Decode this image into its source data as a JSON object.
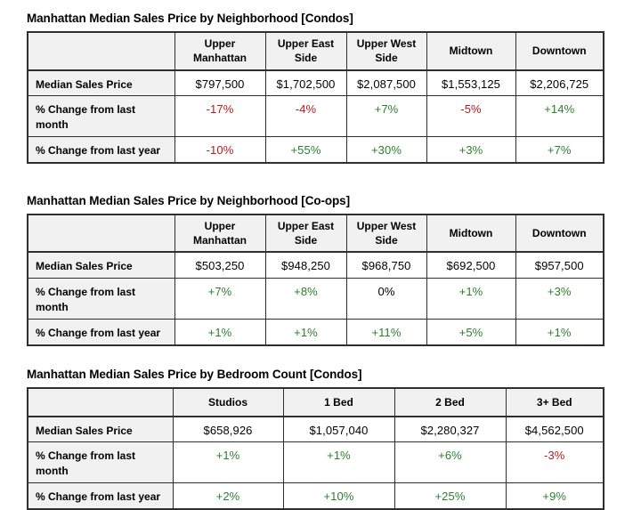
{
  "colors": {
    "positive": "#2d7d2d",
    "negative": "#b01c1c",
    "neutral": "#000000",
    "header_bg": "#f1f1f1",
    "border": "#2f2f2f"
  },
  "tables": [
    {
      "title": "Manhattan Median Sales Price by Neighborhood [Condos]",
      "columns": [
        "Upper Manhattan",
        "Upper East Side",
        "Upper West Side",
        "Midtown",
        "Downtown"
      ],
      "rows": [
        {
          "label": "Median Sales Price",
          "values": [
            {
              "text": "$797,500",
              "tone": "neutral"
            },
            {
              "text": "$1,702,500",
              "tone": "neutral"
            },
            {
              "text": "$2,087,500",
              "tone": "neutral"
            },
            {
              "text": "$1,553,125",
              "tone": "neutral"
            },
            {
              "text": "$2,206,725",
              "tone": "neutral"
            }
          ]
        },
        {
          "label": "% Change from last month",
          "values": [
            {
              "text": "-17%",
              "tone": "negative"
            },
            {
              "text": "-4%",
              "tone": "negative"
            },
            {
              "text": "+7%",
              "tone": "positive"
            },
            {
              "text": "-5%",
              "tone": "negative"
            },
            {
              "text": "+14%",
              "tone": "positive"
            }
          ]
        },
        {
          "label": "% Change from last year",
          "values": [
            {
              "text": "-10%",
              "tone": "negative"
            },
            {
              "text": "+55%",
              "tone": "positive"
            },
            {
              "text": "+30%",
              "tone": "positive"
            },
            {
              "text": "+3%",
              "tone": "positive"
            },
            {
              "text": "+7%",
              "tone": "positive"
            }
          ]
        }
      ]
    },
    {
      "title": "Manhattan Median Sales Price by Neighborhood [Co-ops]",
      "columns": [
        "Upper Manhattan",
        "Upper East Side",
        "Upper West Side",
        "Midtown",
        "Downtown"
      ],
      "rows": [
        {
          "label": "Median Sales Price",
          "values": [
            {
              "text": "$503,250",
              "tone": "neutral"
            },
            {
              "text": "$948,250",
              "tone": "neutral"
            },
            {
              "text": "$968,750",
              "tone": "neutral"
            },
            {
              "text": "$692,500",
              "tone": "neutral"
            },
            {
              "text": "$957,500",
              "tone": "neutral"
            }
          ]
        },
        {
          "label": "% Change from last month",
          "values": [
            {
              "text": "+7%",
              "tone": "positive"
            },
            {
              "text": "+8%",
              "tone": "positive"
            },
            {
              "text": "0%",
              "tone": "neutral"
            },
            {
              "text": "+1%",
              "tone": "positive"
            },
            {
              "text": "+3%",
              "tone": "positive"
            }
          ]
        },
        {
          "label": "% Change from last year",
          "values": [
            {
              "text": "+1%",
              "tone": "positive"
            },
            {
              "text": "+1%",
              "tone": "positive"
            },
            {
              "text": "+11%",
              "tone": "positive"
            },
            {
              "text": "+5%",
              "tone": "positive"
            },
            {
              "text": "+1%",
              "tone": "positive"
            }
          ]
        }
      ]
    },
    {
      "title": "Manhattan Median Sales Price by Bedroom Count [Condos]",
      "columns": [
        "Studios",
        "1 Bed",
        "2 Bed",
        "3+ Bed"
      ],
      "rows": [
        {
          "label": "Median Sales Price",
          "values": [
            {
              "text": "$658,926",
              "tone": "neutral"
            },
            {
              "text": "$1,057,040",
              "tone": "neutral"
            },
            {
              "text": "$2,280,327",
              "tone": "neutral"
            },
            {
              "text": "$4,562,500",
              "tone": "neutral"
            }
          ]
        },
        {
          "label": "% Change from last month",
          "values": [
            {
              "text": "+1%",
              "tone": "positive"
            },
            {
              "text": "+1%",
              "tone": "positive"
            },
            {
              "text": "+6%",
              "tone": "positive"
            },
            {
              "text": "-3%",
              "tone": "negative"
            }
          ]
        },
        {
          "label": "% Change from last year",
          "values": [
            {
              "text": "+2%",
              "tone": "positive"
            },
            {
              "text": "+10%",
              "tone": "positive"
            },
            {
              "text": "+25%",
              "tone": "positive"
            },
            {
              "text": "+9%",
              "tone": "positive"
            }
          ]
        }
      ]
    }
  ]
}
